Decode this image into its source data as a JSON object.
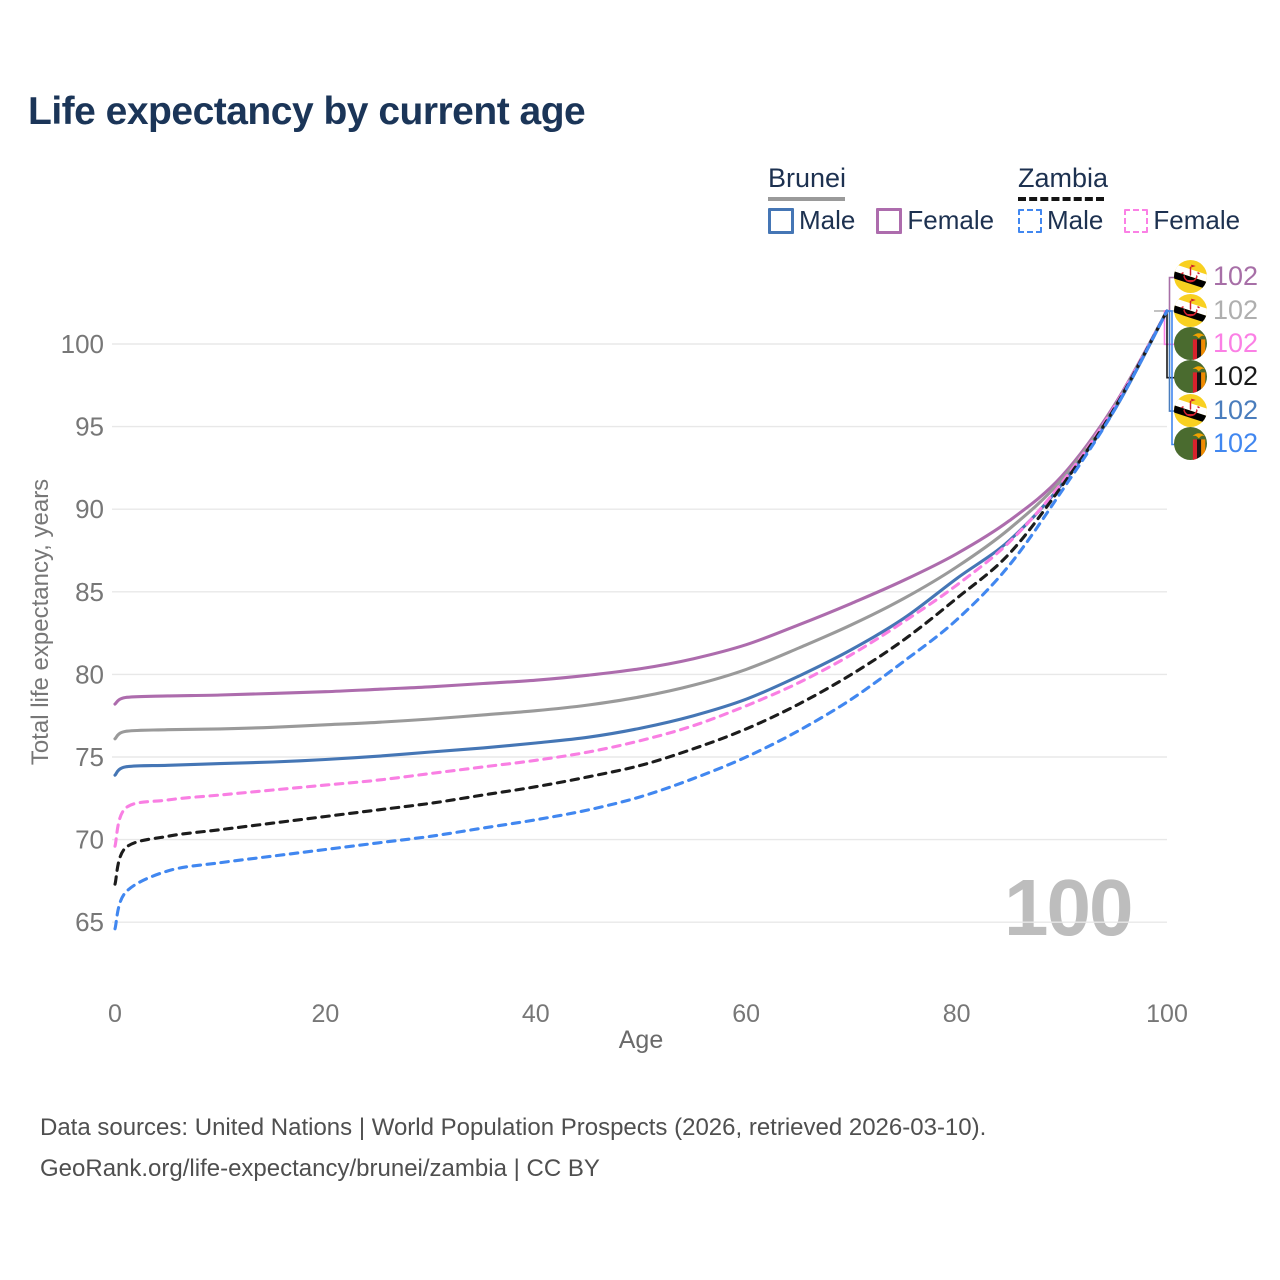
{
  "title": "Life expectancy by current age",
  "watermark_age": "100",
  "legend": {
    "groups": [
      {
        "country": "Brunei",
        "line_style": "solid",
        "underline_color": "#9a9a9a",
        "items": [
          {
            "label": "Male",
            "color": "#4576b5"
          },
          {
            "label": "Female",
            "color": "#ad6cad"
          }
        ]
      },
      {
        "country": "Zambia",
        "line_style": "dashed",
        "underline_color": "#141414",
        "items": [
          {
            "label": "Male",
            "color": "#4187f0"
          },
          {
            "label": "Female",
            "color": "#fb80e5"
          }
        ]
      }
    ]
  },
  "right_labels": [
    {
      "flag": "brunei",
      "series": "Brunei Female",
      "value": "102",
      "color": "#a76fa7"
    },
    {
      "flag": "brunei",
      "series": "Brunei Both sexes",
      "value": "102",
      "color": "#afafaf"
    },
    {
      "flag": "zambia",
      "series": "Zambia Female",
      "value": "102",
      "color": "#fb80e5"
    },
    {
      "flag": "zambia",
      "series": "Zambia Both sexes",
      "value": "102",
      "color": "#1a1a1a"
    },
    {
      "flag": "brunei",
      "series": "Brunei Male",
      "value": "102",
      "color": "#4a7dbd"
    },
    {
      "flag": "zambia",
      "series": "Zambia Male",
      "value": "102",
      "color": "#4187f0"
    }
  ],
  "source": {
    "line1": "Data sources: United Nations | World Population Prospects (2026, retrieved 2026-03-10).",
    "line2": "GeoRank.org/life-expectancy/brunei/zambia | CC BY"
  },
  "chart_data": {
    "type": "line",
    "title": "Life expectancy by current age",
    "xlabel": "Age",
    "ylabel": "Total life expectancy, years",
    "xlim": [
      0,
      100
    ],
    "ylim": [
      63,
      104
    ],
    "x_ticks": [
      0,
      20,
      40,
      60,
      80,
      100
    ],
    "y_ticks": [
      65,
      70,
      75,
      80,
      85,
      90,
      95,
      100
    ],
    "grid": "horizontal",
    "legend_position": "top-right",
    "endpoint_age": 100,
    "endpoint_value": 102,
    "x": [
      0,
      1,
      5,
      10,
      15,
      20,
      25,
      30,
      35,
      40,
      45,
      50,
      55,
      60,
      65,
      70,
      75,
      80,
      85,
      90,
      95,
      100
    ],
    "series": [
      {
        "name": "Brunei Female",
        "country": "Brunei",
        "sex": "Female",
        "color": "#ad6cad",
        "dashed": false,
        "values": [
          78.2,
          78.6,
          78.7,
          78.75,
          78.85,
          78.95,
          79.1,
          79.25,
          79.45,
          79.65,
          79.95,
          80.35,
          80.95,
          81.8,
          83.0,
          84.3,
          85.7,
          87.3,
          89.3,
          92.0,
          96.3,
          102
        ]
      },
      {
        "name": "Brunei Both sexes",
        "country": "Brunei",
        "sex": "Both",
        "color": "#9a9a9a",
        "dashed": false,
        "values": [
          76.1,
          76.55,
          76.65,
          76.7,
          76.8,
          76.95,
          77.1,
          77.3,
          77.55,
          77.8,
          78.15,
          78.65,
          79.35,
          80.3,
          81.6,
          83.0,
          84.6,
          86.5,
          88.8,
          91.8,
          96.2,
          102
        ]
      },
      {
        "name": "Brunei Male",
        "country": "Brunei",
        "sex": "Male",
        "color": "#4576b5",
        "dashed": false,
        "values": [
          73.9,
          74.4,
          74.5,
          74.6,
          74.7,
          74.85,
          75.05,
          75.3,
          75.55,
          75.85,
          76.2,
          76.75,
          77.5,
          78.5,
          79.9,
          81.5,
          83.4,
          85.8,
          88.1,
          91.5,
          96.0,
          102
        ]
      },
      {
        "name": "Zambia Female",
        "country": "Zambia",
        "sex": "Female",
        "color": "#f97fe3",
        "dashed": true,
        "values": [
          69.6,
          71.9,
          72.4,
          72.7,
          73.0,
          73.3,
          73.6,
          74.0,
          74.4,
          74.8,
          75.3,
          76.0,
          76.9,
          78.1,
          79.5,
          81.2,
          83.2,
          85.4,
          88.0,
          91.6,
          96.2,
          102
        ]
      },
      {
        "name": "Zambia Both sexes",
        "country": "Zambia",
        "sex": "Both",
        "color": "#1c1c1c",
        "dashed": true,
        "values": [
          67.3,
          69.5,
          70.2,
          70.6,
          71.0,
          71.4,
          71.8,
          72.2,
          72.7,
          73.2,
          73.8,
          74.5,
          75.5,
          76.7,
          78.2,
          80.0,
          82.1,
          84.6,
          87.3,
          91.4,
          96.1,
          102
        ]
      },
      {
        "name": "Zambia Male",
        "country": "Zambia",
        "sex": "Male",
        "color": "#4187f0",
        "dashed": true,
        "values": [
          64.6,
          66.8,
          68.1,
          68.6,
          69.0,
          69.4,
          69.8,
          70.2,
          70.7,
          71.2,
          71.8,
          72.6,
          73.7,
          75.0,
          76.6,
          78.5,
          80.8,
          83.3,
          86.6,
          91.1,
          96.0,
          102
        ]
      }
    ]
  }
}
